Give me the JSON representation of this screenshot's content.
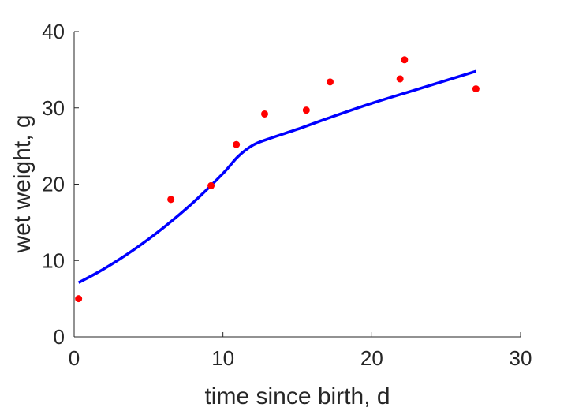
{
  "chart_data": {
    "type": "line",
    "xlabel": "time since birth, d",
    "ylabel": "wet weight, g",
    "xlim": [
      0,
      30
    ],
    "ylim": [
      0,
      40
    ],
    "x_ticks": [
      0,
      10,
      20,
      30
    ],
    "y_ticks": [
      0,
      10,
      20,
      30,
      40
    ],
    "x_tick_labels": [
      "0",
      "10",
      "20",
      "30"
    ],
    "y_tick_labels": [
      "0",
      "10",
      "20",
      "30",
      "40"
    ],
    "grid": false,
    "legend": "none",
    "series": [
      {
        "kind": "scatter",
        "color": "#ff0000",
        "marker": "filled-circle",
        "x": [
          0.3,
          6.5,
          9.2,
          10.9,
          12.8,
          15.6,
          17.2,
          21.9,
          22.2,
          27.0
        ],
        "y": [
          5.0,
          18.0,
          19.8,
          25.2,
          29.2,
          29.7,
          33.4,
          33.8,
          36.3,
          32.5
        ]
      },
      {
        "kind": "line",
        "color": "#0000ff",
        "x": [
          0.3,
          2,
          4,
          6,
          8,
          10,
          11,
          12,
          13,
          15,
          17,
          20,
          23,
          27
        ],
        "y": [
          7.1,
          8.9,
          11.4,
          14.3,
          17.6,
          21.4,
          23.6,
          25.1,
          25.9,
          27.2,
          28.6,
          30.6,
          32.4,
          34.8
        ]
      }
    ]
  }
}
